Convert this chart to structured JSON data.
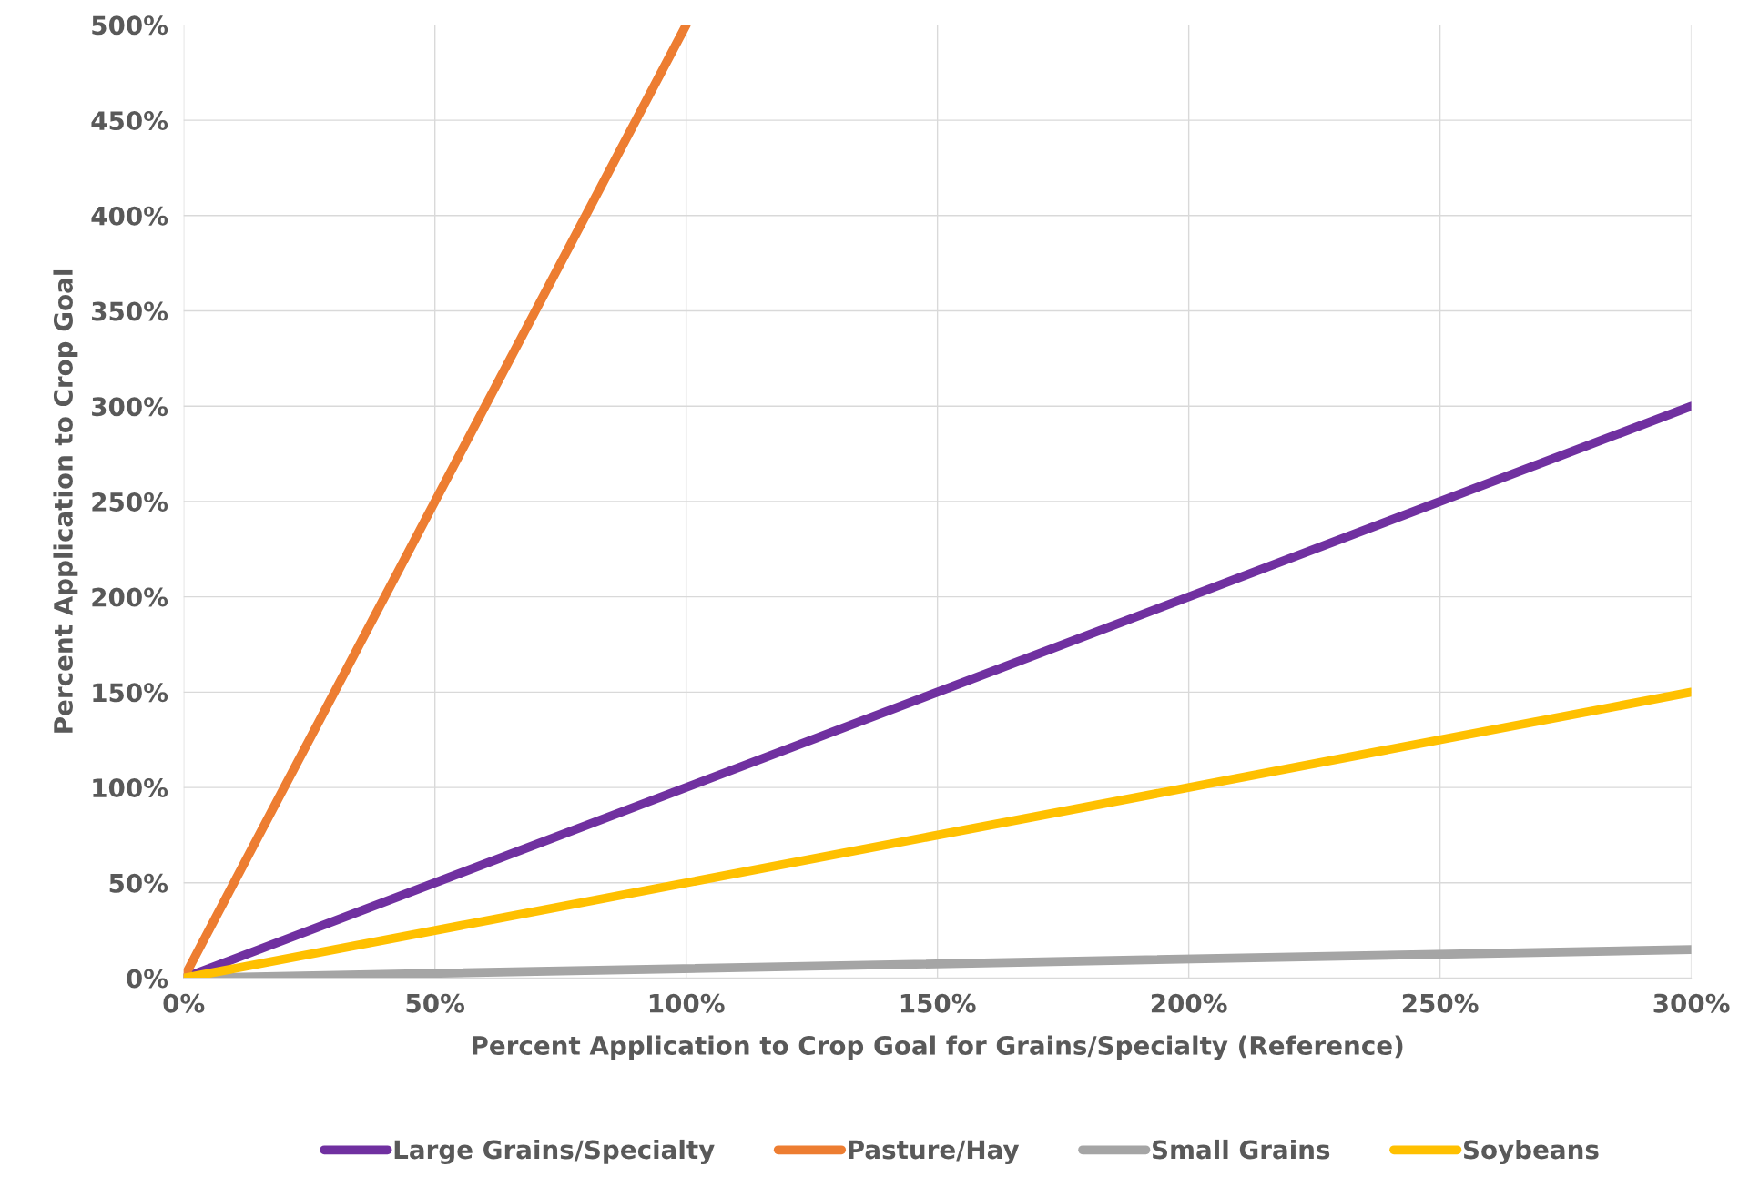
{
  "chart_data": {
    "type": "line",
    "xlabel": "Percent Application to Crop Goal for Grains/Specialty (Reference)",
    "ylabel": "Percent Application to Crop Goal",
    "series": [
      {
        "name": "Large Grains/Specialty",
        "color": "#7030a0",
        "x": [
          0,
          300
        ],
        "values": [
          0,
          300
        ]
      },
      {
        "name": "Pasture/Hay",
        "color": "#ed7d31",
        "x": [
          0,
          100
        ],
        "values": [
          0,
          500
        ]
      },
      {
        "name": "Small Grains",
        "color": "#a5a5a5",
        "x": [
          0,
          300
        ],
        "values": [
          0,
          15
        ]
      },
      {
        "name": "Soybeans",
        "color": "#ffc000",
        "x": [
          0,
          300
        ],
        "values": [
          0,
          150
        ]
      }
    ],
    "xlim": [
      0,
      300
    ],
    "ylim": [
      0,
      500
    ],
    "xticks": [
      {
        "value": 0,
        "label": "0%"
      },
      {
        "value": 50,
        "label": "50%"
      },
      {
        "value": 100,
        "label": "100%"
      },
      {
        "value": 150,
        "label": "150%"
      },
      {
        "value": 200,
        "label": "200%"
      },
      {
        "value": 250,
        "label": "250%"
      },
      {
        "value": 300,
        "label": "300%"
      }
    ],
    "yticks": [
      {
        "value": 0,
        "label": "0%"
      },
      {
        "value": 50,
        "label": "50%"
      },
      {
        "value": 100,
        "label": "100%"
      },
      {
        "value": 150,
        "label": "150%"
      },
      {
        "value": 200,
        "label": "200%"
      },
      {
        "value": 250,
        "label": "250%"
      },
      {
        "value": 300,
        "label": "300%"
      },
      {
        "value": 350,
        "label": "350%"
      },
      {
        "value": 400,
        "label": "400%"
      },
      {
        "value": 450,
        "label": "450%"
      },
      {
        "value": 500,
        "label": "500%"
      }
    ],
    "grid": true,
    "legend": "bottom",
    "marker": "none",
    "line_style": "solid"
  }
}
